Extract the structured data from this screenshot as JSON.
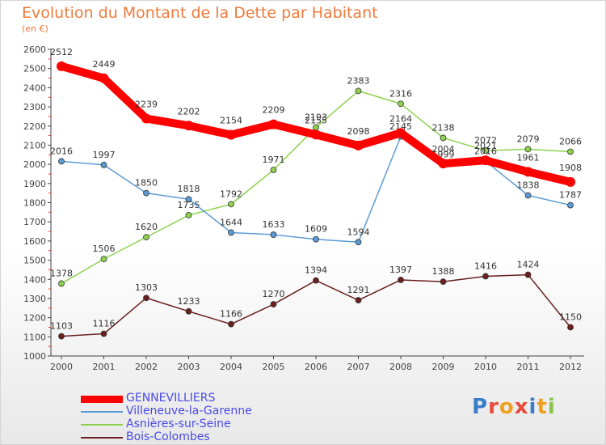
{
  "title": "Evolution du Montant de la Dette par Habitant",
  "subtitle": "(en €)",
  "logo": {
    "text": "Proxiti",
    "letter_colors": [
      "#3a7dc9",
      "#e84b3c",
      "#f0a020",
      "#e84b3c",
      "#3a7dc9",
      "#f0a020",
      "#8bc34a"
    ]
  },
  "chart_data": {
    "type": "line",
    "title": "Evolution du Montant de la Dette par Habitant",
    "subtitle": "(en €)",
    "xlabel": "",
    "ylabel": "",
    "x": [
      "2000",
      "2001",
      "2002",
      "2003",
      "2004",
      "2005",
      "2006",
      "2007",
      "2008",
      "2009",
      "2010",
      "2011",
      "2012"
    ],
    "ylim": [
      1000,
      2600
    ],
    "yticks": [
      1000,
      1100,
      1200,
      1300,
      1400,
      1500,
      1600,
      1700,
      1800,
      1900,
      2000,
      2100,
      2200,
      2300,
      2400,
      2500,
      2600
    ],
    "grid": false,
    "legend_position": "bottom-left",
    "series": [
      {
        "name": "GENNEVILLIERS",
        "color": "#ff0000",
        "values": [
          2512,
          2449,
          2239,
          2202,
          2154,
          2209,
          2155,
          2098,
          2164,
          2004,
          2021,
          1961,
          1908
        ]
      },
      {
        "name": "Villeneuve-la-Garenne",
        "color": "#5b9bd5",
        "values": [
          2016,
          1997,
          1850,
          1818,
          1644,
          1633,
          1609,
          1594,
          2145,
          1999,
          2016,
          1838,
          1787
        ]
      },
      {
        "name": "Asnières-sur-Seine",
        "color": "#8fd14f",
        "values": [
          1378,
          1506,
          1620,
          1735,
          1792,
          1971,
          2193,
          2383,
          2316,
          2138,
          2072,
          2079,
          2066
        ]
      },
      {
        "name": "Bois-Colombes",
        "color": "#6b1f1f",
        "values": [
          1103,
          1116,
          1303,
          1233,
          1166,
          1270,
          1394,
          1291,
          1397,
          1388,
          1416,
          1424,
          1150
        ]
      }
    ]
  }
}
